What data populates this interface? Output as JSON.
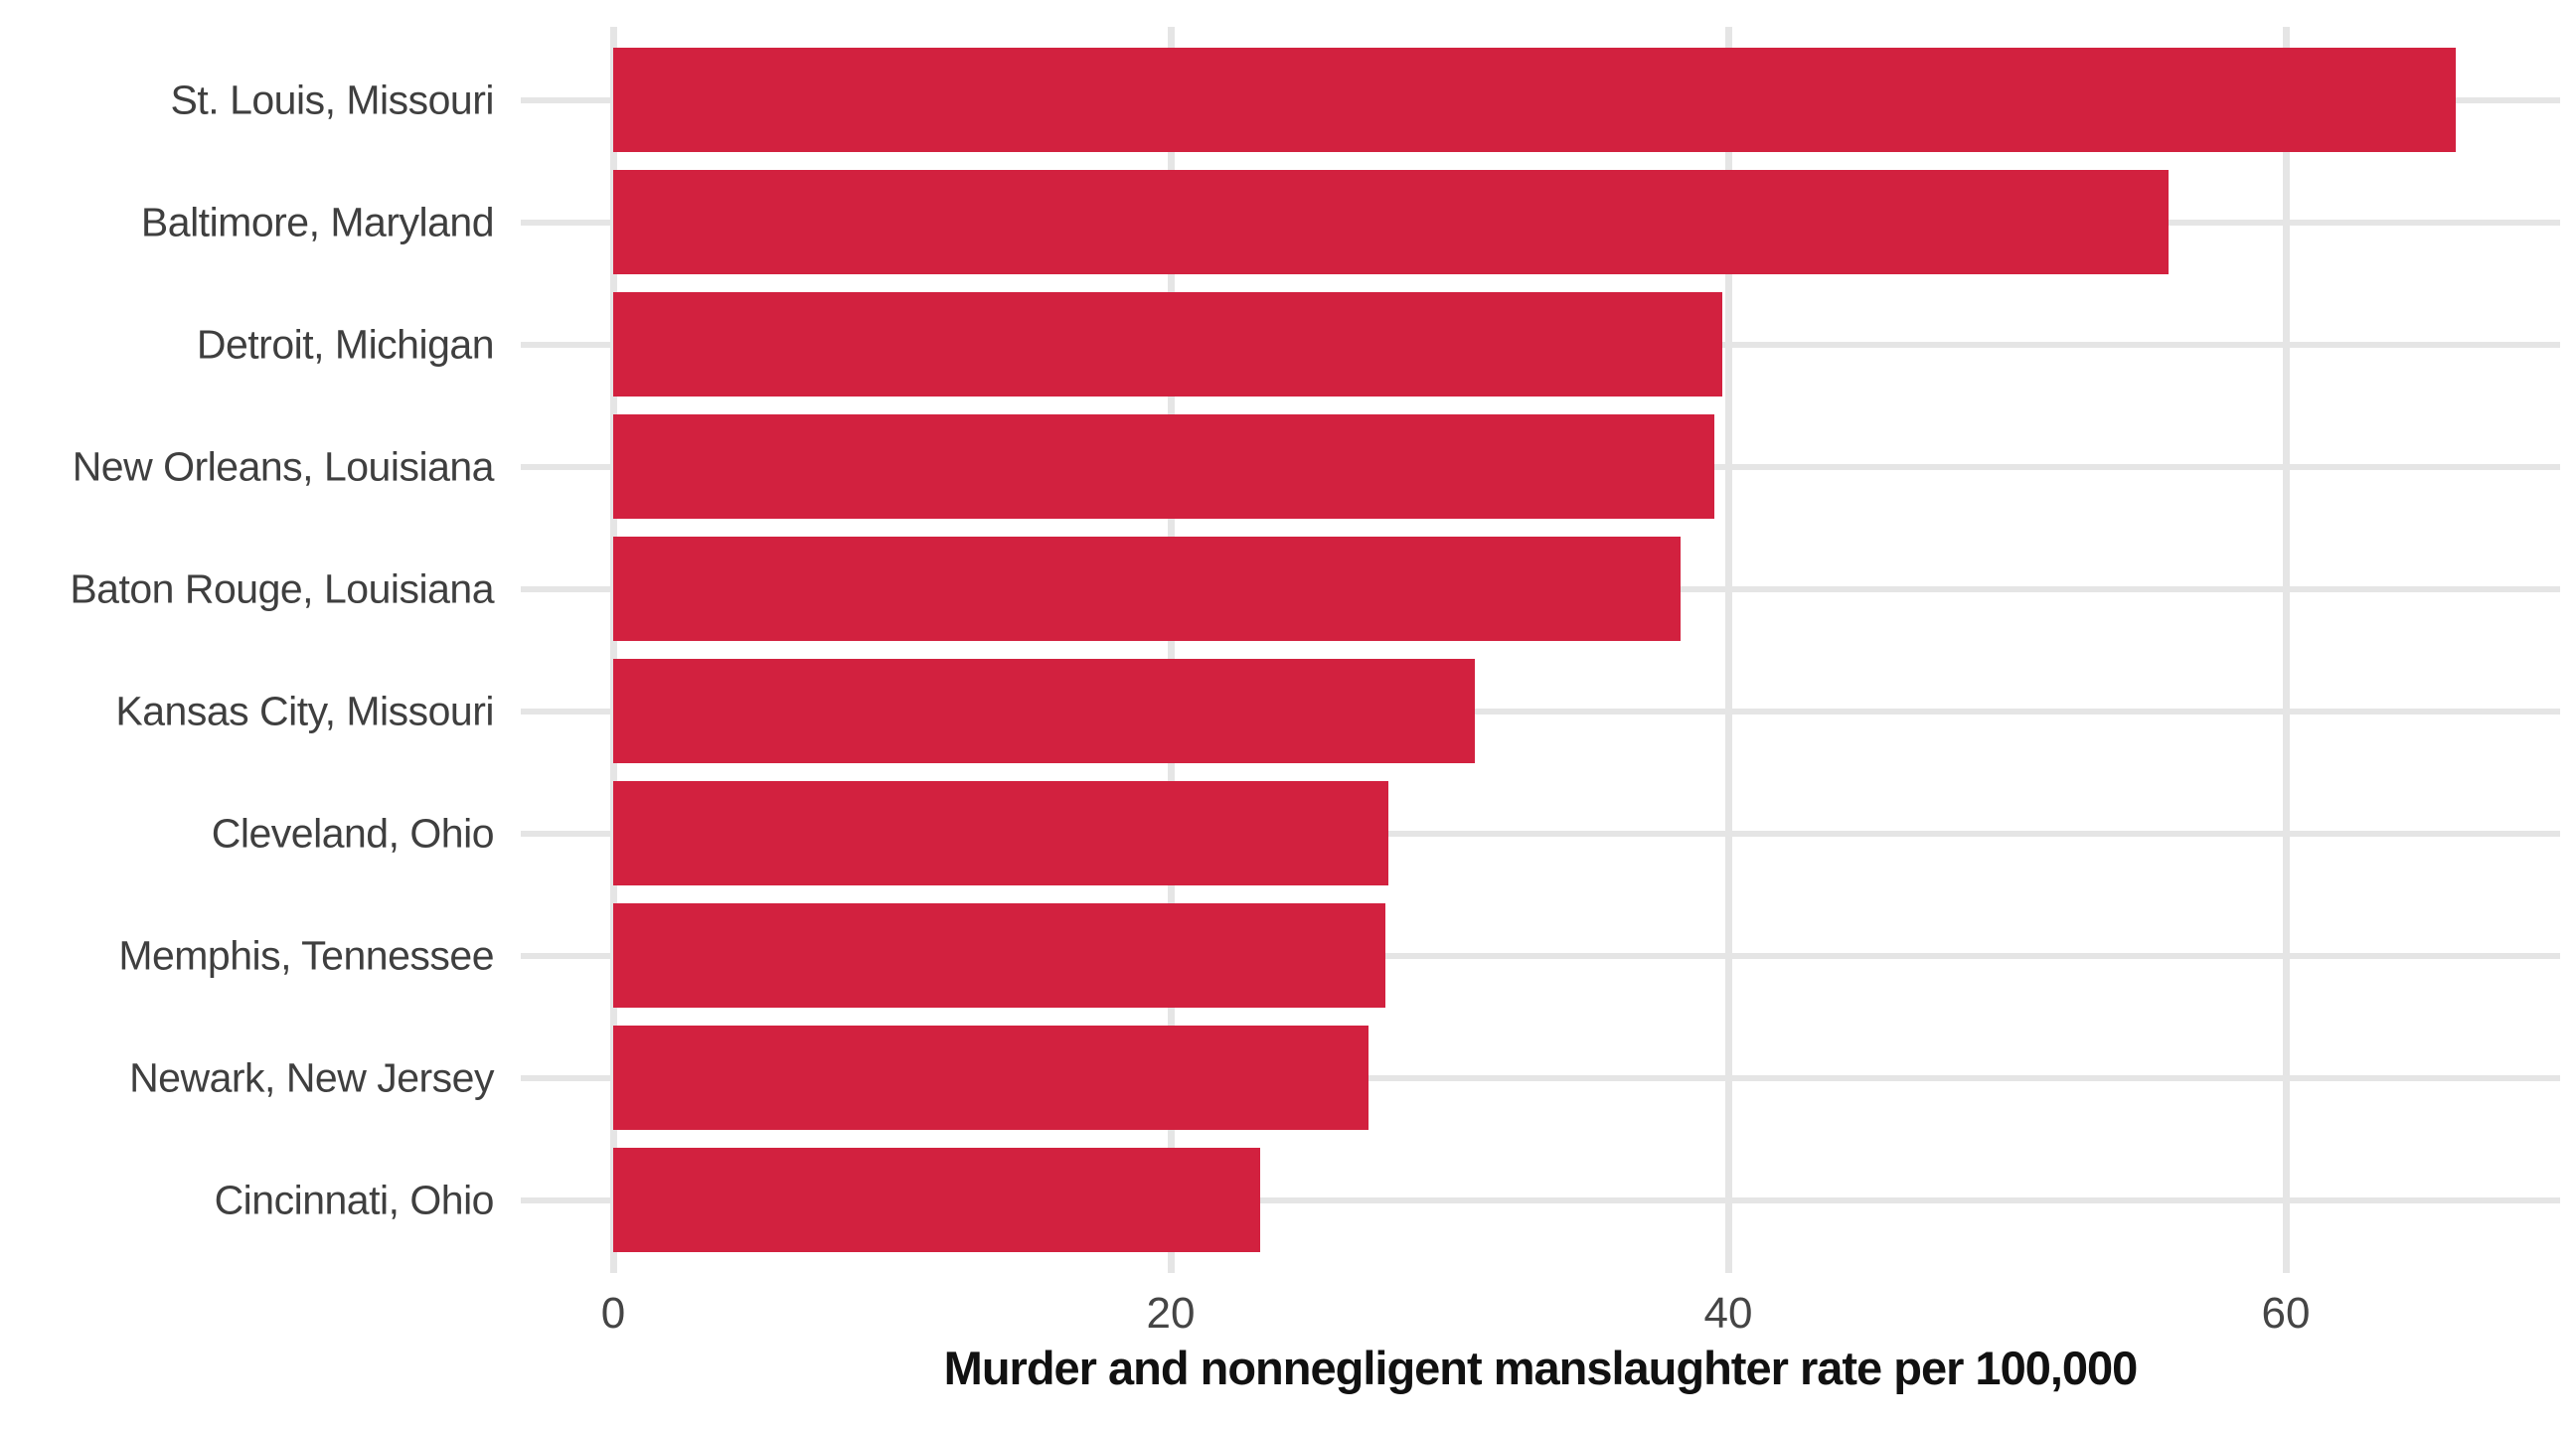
{
  "chart_data": {
    "type": "bar",
    "orientation": "horizontal",
    "title": "",
    "xlabel": "Murder and nonnegligent manslaughter rate per 100,000",
    "ylabel": "",
    "categories": [
      "St. Louis, Missouri",
      "Baltimore, Maryland",
      "Detroit, Michigan",
      "New Orleans, Louisiana",
      "Baton Rouge, Louisiana",
      "Kansas City, Missouri",
      "Cleveland, Ohio",
      "Memphis, Tennessee",
      "Newark, New Jersey",
      "Cincinnati, Ohio"
    ],
    "values": [
      66.1,
      55.8,
      39.8,
      39.5,
      38.3,
      30.9,
      27.8,
      27.7,
      27.1,
      23.2
    ],
    "x_ticks": [
      0,
      20,
      40,
      60
    ],
    "x_tick_labels": [
      "0",
      "20",
      "40",
      "60"
    ],
    "xlim": [
      0,
      69.8
    ],
    "grid": "major-x-and-category-y",
    "legend": "none",
    "bar_color": "#d2213f",
    "gridline_color": "#e5e5e5",
    "category_label_color": "#3f3f3f",
    "tick_label_color": "#454545",
    "axis_title_color": "#111111"
  }
}
